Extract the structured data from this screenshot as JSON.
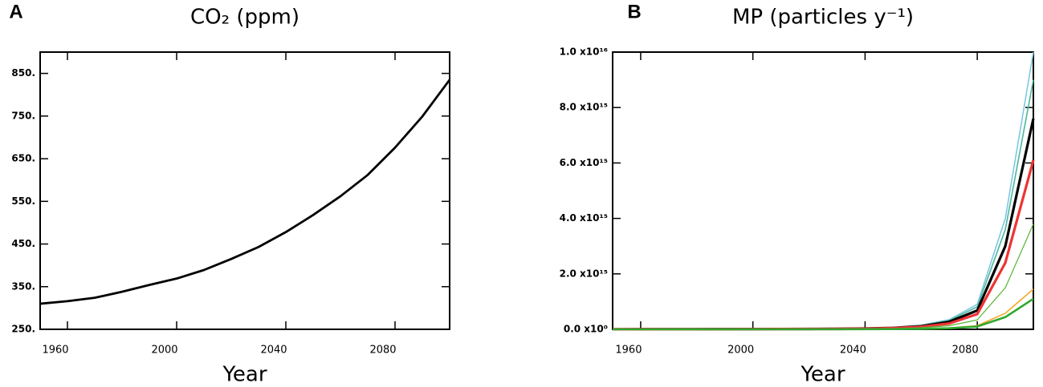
{
  "chart_data": [
    {
      "type": "line",
      "panel": "A",
      "title": "CO₂ (ppm)",
      "xlabel": "Year",
      "x": [
        1950,
        1960,
        1970,
        1980,
        1990,
        2000,
        2010,
        2020,
        2030,
        2040,
        2050,
        2060,
        2070,
        2080,
        2090,
        2100
      ],
      "series": [
        {
          "color": "#000000",
          "values": [
            310,
            316,
            324,
            338,
            354,
            369,
            389,
            415,
            443,
            478,
            518,
            562,
            612,
            676,
            749,
            835
          ]
        }
      ],
      "xlim": [
        1950,
        2100
      ],
      "xticks": [
        1960,
        2000,
        2040,
        2080
      ],
      "ylim": [
        250,
        900
      ],
      "yticks": [
        {
          "value": 250,
          "label": "250."
        },
        {
          "value": 350,
          "label": "350."
        },
        {
          "value": 450,
          "label": "450."
        },
        {
          "value": 550,
          "label": "550."
        },
        {
          "value": 650,
          "label": "650."
        },
        {
          "value": 750,
          "label": "750."
        },
        {
          "value": 850,
          "label": "850."
        }
      ]
    },
    {
      "type": "line",
      "panel": "B",
      "title": "MP (particles y⁻¹)",
      "xlabel": "Year",
      "x": [
        1950,
        1960,
        1970,
        1980,
        1990,
        2000,
        2010,
        2020,
        2030,
        2040,
        2050,
        2060,
        2070,
        2080,
        2090,
        2100
      ],
      "series": [
        {
          "color": "#7ec8e3",
          "values": [
            3000000000000.0,
            4000000000000.0,
            5000000000000.0,
            7000000000000.0,
            9000000000000.0,
            12000000000000.0,
            16000000000000.0,
            20000000000000.0,
            25000000000000.0,
            40000000000000.0,
            70000000000000.0,
            150000000000000.0,
            350000000000000.0,
            900000000000000.0,
            4000000000000000.0,
            1e+16
          ]
        },
        {
          "color": "#4cb89a",
          "values": [
            2700000000000.0,
            3600000000000.0,
            4500000000000.0,
            6300000000000.0,
            8100000000000.0,
            11000000000000.0,
            14000000000000.0,
            18000000000000.0,
            23000000000000.0,
            36000000000000.0,
            63000000000000.0,
            140000000000000.0,
            320000000000000.0,
            810000000000000.0,
            3600000000000000.0,
            9000000000000000.0
          ]
        },
        {
          "color": "#000000",
          "values": [
            2300000000000.0,
            3000000000000.0,
            3800000000000.0,
            5300000000000.0,
            6800000000000.0,
            9100000000000.0,
            12000000000000.0,
            15000000000000.0,
            19000000000000.0,
            30000000000000.0,
            53000000000000.0,
            110000000000000.0,
            270000000000000.0,
            680000000000000.0,
            3000000000000000.0,
            7600000000000000.0
          ]
        },
        {
          "color": "#ee3333",
          "values": [
            1800000000000.0,
            2400000000000.0,
            3100000000000.0,
            4300000000000.0,
            5500000000000.0,
            7300000000000.0,
            9800000000000.0,
            12000000000000.0,
            15000000000000.0,
            24000000000000.0,
            43000000000000.0,
            92000000000000.0,
            210000000000000.0,
            550000000000000.0,
            2400000000000000.0,
            6100000000000000.0
          ]
        },
        {
          "color": "#55b535",
          "values": [
            1100000000000.0,
            1500000000000.0,
            1900000000000.0,
            2700000000000.0,
            3400000000000.0,
            4600000000000.0,
            6100000000000.0,
            7600000000000.0,
            9500000000000.0,
            15000000000000.0,
            27000000000000.0,
            57000000000000.0,
            130000000000000.0,
            340000000000000.0,
            1500000000000000.0,
            3800000000000000.0
          ]
        },
        {
          "color": "#f5a623",
          "values": [
            400000000000.0,
            600000000000.0,
            700000000000.0,
            1000000000000.0,
            1300000000000.0,
            1700000000000.0,
            2300000000000.0,
            2900000000000.0,
            3600000000000.0,
            5800000000000.0,
            10000000000000.0,
            22000000000000.0,
            51000000000000.0,
            130000000000000.0,
            580000000000000.0,
            1450000000000000.0
          ]
        },
        {
          "color": "#2fa82f",
          "values": [
            300000000000.0,
            400000000000.0,
            600000000000.0,
            800000000000.0,
            1000000000000.0,
            1300000000000.0,
            1800000000000.0,
            2200000000000.0,
            2800000000000.0,
            4400000000000.0,
            7700000000000.0,
            17000000000000.0,
            39000000000000.0,
            100000000000000.0,
            440000000000000.0,
            1100000000000000.0
          ]
        }
      ],
      "xlim": [
        1950,
        2100
      ],
      "xticks": [
        1960,
        2000,
        2040,
        2080
      ],
      "ylim": [
        0,
        1e+16
      ],
      "yticks": [
        {
          "value": 0,
          "label": "0.0 x10⁰"
        },
        {
          "value": 2000000000000000.0,
          "label": "2.0 x10¹⁵"
        },
        {
          "value": 4000000000000000.0,
          "label": "4.0 x10¹⁵"
        },
        {
          "value": 6000000000000000.0,
          "label": "6.0 x10¹⁵"
        },
        {
          "value": 8000000000000000.0,
          "label": "8.0 x10¹⁵"
        },
        {
          "value": 1e+16,
          "label": "1.0 x10¹⁶"
        }
      ]
    }
  ]
}
